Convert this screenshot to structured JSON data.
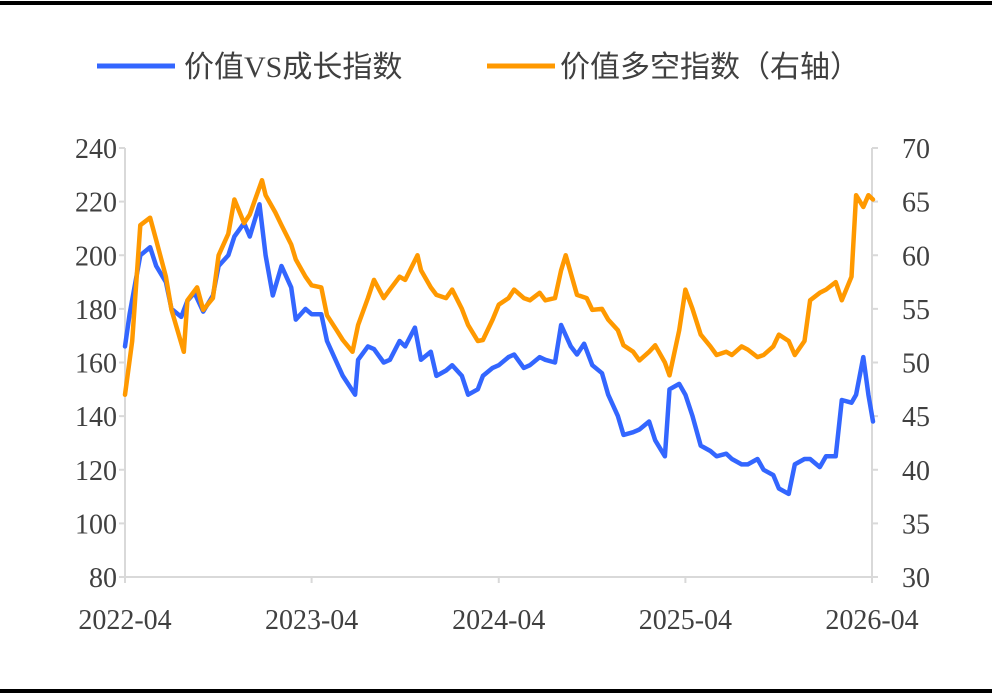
{
  "chart_data": {
    "type": "line",
    "title": "",
    "legend_position": "top",
    "grid": false,
    "x_ticks": [
      "2022-04",
      "2023-04",
      "2024-04",
      "2025-04",
      "2026-04"
    ],
    "xlim": [
      "2022-04-01",
      "2026-04-01"
    ],
    "left_axis": {
      "ylim": [
        80,
        240
      ],
      "ticks": [
        "80",
        "100",
        "120",
        "140",
        "160",
        "180",
        "200",
        "220",
        "240"
      ]
    },
    "right_axis": {
      "ylim": [
        30,
        70
      ],
      "ticks": [
        "30",
        "35",
        "40",
        "45",
        "50",
        "55",
        "60",
        "65",
        "70"
      ]
    },
    "series": [
      {
        "name": "价值VS成长指数",
        "axis": "left",
        "color": "#3366ff",
        "points": [
          [
            "2022-04-01",
            166
          ],
          [
            "2022-04-10",
            178
          ],
          [
            "2022-05-01",
            200
          ],
          [
            "2022-05-20",
            203
          ],
          [
            "2022-06-01",
            196
          ],
          [
            "2022-06-20",
            190
          ],
          [
            "2022-07-01",
            180
          ],
          [
            "2022-07-20",
            177
          ],
          [
            "2022-08-01",
            183
          ],
          [
            "2022-08-15",
            186
          ],
          [
            "2022-09-01",
            179
          ],
          [
            "2022-09-20",
            185
          ],
          [
            "2022-10-01",
            196
          ],
          [
            "2022-10-20",
            200
          ],
          [
            "2022-11-01",
            207
          ],
          [
            "2022-11-20",
            212
          ],
          [
            "2022-12-01",
            207
          ],
          [
            "2022-12-20",
            219
          ],
          [
            "2023-01-01",
            200
          ],
          [
            "2023-01-15",
            185
          ],
          [
            "2023-02-01",
            196
          ],
          [
            "2023-02-20",
            188
          ],
          [
            "2023-03-01",
            176
          ],
          [
            "2023-03-20",
            180
          ],
          [
            "2023-04-01",
            178
          ],
          [
            "2023-04-20",
            178
          ],
          [
            "2023-05-01",
            168
          ],
          [
            "2023-05-20",
            160
          ],
          [
            "2023-06-01",
            155
          ],
          [
            "2023-06-25",
            148
          ],
          [
            "2023-07-01",
            161
          ],
          [
            "2023-07-20",
            166
          ],
          [
            "2023-08-01",
            165
          ],
          [
            "2023-08-20",
            160
          ],
          [
            "2023-09-01",
            161
          ],
          [
            "2023-09-20",
            168
          ],
          [
            "2023-10-01",
            166
          ],
          [
            "2023-10-20",
            173
          ],
          [
            "2023-11-01",
            161
          ],
          [
            "2023-11-20",
            164
          ],
          [
            "2023-12-01",
            155
          ],
          [
            "2023-12-20",
            157
          ],
          [
            "2024-01-01",
            159
          ],
          [
            "2024-01-20",
            155
          ],
          [
            "2024-02-01",
            148
          ],
          [
            "2024-02-20",
            150
          ],
          [
            "2024-03-01",
            155
          ],
          [
            "2024-03-20",
            158
          ],
          [
            "2024-04-01",
            159
          ],
          [
            "2024-04-20",
            162
          ],
          [
            "2024-05-01",
            163
          ],
          [
            "2024-05-20",
            158
          ],
          [
            "2024-06-01",
            159
          ],
          [
            "2024-06-20",
            162
          ],
          [
            "2024-07-01",
            161
          ],
          [
            "2024-07-20",
            160
          ],
          [
            "2024-08-01",
            174
          ],
          [
            "2024-08-20",
            166
          ],
          [
            "2024-09-01",
            163
          ],
          [
            "2024-09-15",
            167
          ],
          [
            "2024-10-01",
            159
          ],
          [
            "2024-10-20",
            156
          ],
          [
            "2024-11-01",
            148
          ],
          [
            "2024-11-20",
            140
          ],
          [
            "2024-12-01",
            133
          ],
          [
            "2024-12-20",
            134
          ],
          [
            "2025-01-01",
            135
          ],
          [
            "2025-01-20",
            138
          ],
          [
            "2025-02-01",
            131
          ],
          [
            "2025-02-20",
            125
          ],
          [
            "2025-03-01",
            150
          ],
          [
            "2025-03-20",
            152
          ],
          [
            "2025-04-01",
            148
          ],
          [
            "2025-04-15",
            140
          ],
          [
            "2025-05-01",
            129
          ],
          [
            "2025-05-20",
            127
          ],
          [
            "2025-06-01",
            125
          ],
          [
            "2025-06-20",
            126
          ],
          [
            "2025-07-01",
            124
          ],
          [
            "2025-07-20",
            122
          ],
          [
            "2025-08-01",
            122
          ],
          [
            "2025-08-20",
            124
          ],
          [
            "2025-09-01",
            120
          ],
          [
            "2025-09-20",
            118
          ],
          [
            "2025-10-01",
            113
          ],
          [
            "2025-10-20",
            111
          ],
          [
            "2025-11-01",
            122
          ],
          [
            "2025-11-20",
            124
          ],
          [
            "2025-12-01",
            124
          ],
          [
            "2025-12-20",
            121
          ],
          [
            "2026-01-01",
            125
          ],
          [
            "2026-01-20",
            125
          ],
          [
            "2026-02-01",
            146
          ],
          [
            "2026-02-20",
            145
          ],
          [
            "2026-03-01",
            148
          ],
          [
            "2026-03-15",
            162
          ],
          [
            "2026-03-25",
            148
          ],
          [
            "2026-04-03",
            138
          ]
        ]
      },
      {
        "name": "价值多空指数（右轴）",
        "axis": "right",
        "color": "#ff9900",
        "points": [
          [
            "2022-04-01",
            47
          ],
          [
            "2022-04-15",
            52
          ],
          [
            "2022-05-01",
            62.8
          ],
          [
            "2022-05-20",
            63.5
          ],
          [
            "2022-06-01",
            61.4
          ],
          [
            "2022-06-20",
            58
          ],
          [
            "2022-07-01",
            54.9
          ],
          [
            "2022-07-25",
            51
          ],
          [
            "2022-08-01",
            55.8
          ],
          [
            "2022-08-20",
            57
          ],
          [
            "2022-09-01",
            54.9
          ],
          [
            "2022-09-20",
            56
          ],
          [
            "2022-10-01",
            60
          ],
          [
            "2022-10-20",
            62
          ],
          [
            "2022-11-01",
            65.2
          ],
          [
            "2022-11-20",
            63
          ],
          [
            "2022-12-01",
            63.8
          ],
          [
            "2022-12-25",
            67
          ],
          [
            "2023-01-01",
            65.6
          ],
          [
            "2023-01-20",
            64
          ],
          [
            "2023-02-01",
            62.8
          ],
          [
            "2023-02-20",
            61
          ],
          [
            "2023-03-01",
            59.6
          ],
          [
            "2023-03-20",
            58
          ],
          [
            "2023-04-01",
            57.2
          ],
          [
            "2023-04-20",
            57
          ],
          [
            "2023-05-01",
            54.4
          ],
          [
            "2023-05-20",
            53
          ],
          [
            "2023-06-01",
            52.1
          ],
          [
            "2023-06-20",
            51
          ],
          [
            "2023-07-01",
            53.5
          ],
          [
            "2023-07-20",
            56
          ],
          [
            "2023-08-01",
            57.7
          ],
          [
            "2023-08-20",
            56
          ],
          [
            "2023-09-01",
            56.8
          ],
          [
            "2023-09-20",
            58
          ],
          [
            "2023-10-01",
            57.7
          ],
          [
            "2023-10-25",
            60
          ],
          [
            "2023-11-01",
            58.6
          ],
          [
            "2023-11-20",
            57
          ],
          [
            "2023-12-01",
            56.3
          ],
          [
            "2023-12-20",
            56
          ],
          [
            "2024-01-01",
            56.8
          ],
          [
            "2024-01-20",
            55
          ],
          [
            "2024-02-01",
            53.5
          ],
          [
            "2024-02-20",
            52
          ],
          [
            "2024-03-01",
            52.1
          ],
          [
            "2024-03-20",
            54
          ],
          [
            "2024-04-01",
            55.4
          ],
          [
            "2024-04-20",
            56
          ],
          [
            "2024-05-01",
            56.8
          ],
          [
            "2024-05-20",
            56
          ],
          [
            "2024-06-01",
            55.8
          ],
          [
            "2024-06-20",
            56.5
          ],
          [
            "2024-07-01",
            55.8
          ],
          [
            "2024-07-20",
            56
          ],
          [
            "2024-08-01",
            58.6
          ],
          [
            "2024-08-10",
            60
          ],
          [
            "2024-09-01",
            56.3
          ],
          [
            "2024-09-20",
            56
          ],
          [
            "2024-10-01",
            54.9
          ],
          [
            "2024-10-20",
            55
          ],
          [
            "2024-11-01",
            54
          ],
          [
            "2024-11-20",
            53
          ],
          [
            "2024-12-01",
            51.6
          ],
          [
            "2024-12-20",
            51
          ],
          [
            "2025-01-01",
            50.2
          ],
          [
            "2025-01-20",
            51
          ],
          [
            "2025-02-01",
            51.6
          ],
          [
            "2025-02-20",
            50
          ],
          [
            "2025-03-01",
            48.8
          ],
          [
            "2025-03-20",
            53
          ],
          [
            "2025-04-01",
            56.8
          ],
          [
            "2025-04-15",
            55
          ],
          [
            "2025-05-01",
            52.6
          ],
          [
            "2025-05-20",
            51.5
          ],
          [
            "2025-06-01",
            50.7
          ],
          [
            "2025-06-20",
            51
          ],
          [
            "2025-07-01",
            50.7
          ],
          [
            "2025-07-20",
            51.5
          ],
          [
            "2025-08-01",
            51.2
          ],
          [
            "2025-08-20",
            50.5
          ],
          [
            "2025-09-01",
            50.7
          ],
          [
            "2025-09-20",
            51.5
          ],
          [
            "2025-10-01",
            52.6
          ],
          [
            "2025-10-20",
            52
          ],
          [
            "2025-11-01",
            50.7
          ],
          [
            "2025-11-20",
            52
          ],
          [
            "2025-12-01",
            55.8
          ],
          [
            "2025-12-20",
            56.5
          ],
          [
            "2026-01-01",
            56.8
          ],
          [
            "2026-01-20",
            57.5
          ],
          [
            "2026-02-01",
            55.8
          ],
          [
            "2026-02-20",
            58
          ],
          [
            "2026-03-01",
            65.6
          ],
          [
            "2026-03-15",
            64.5
          ],
          [
            "2026-03-25",
            65.6
          ],
          [
            "2026-04-03",
            65.2
          ]
        ]
      }
    ]
  }
}
